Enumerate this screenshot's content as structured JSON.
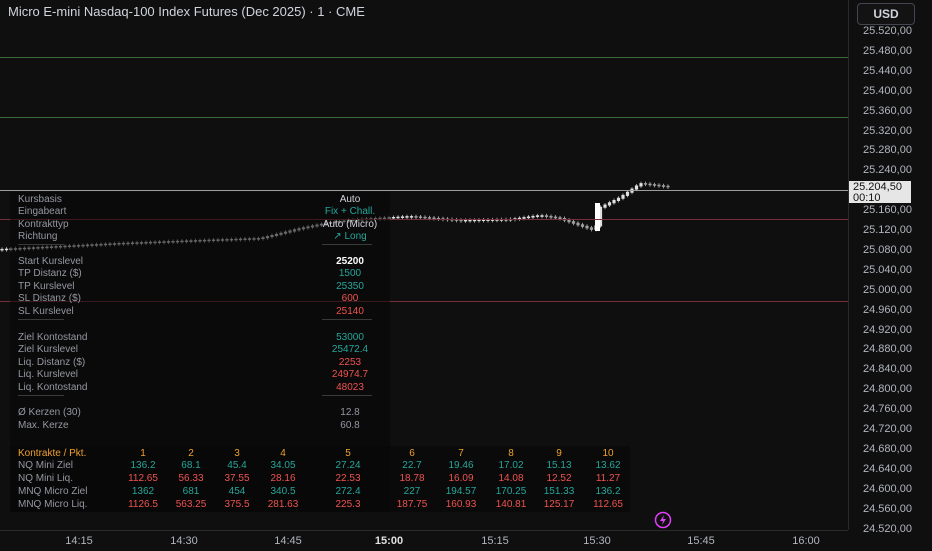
{
  "title": "Micro E-mini Nasdaq-100 Index Futures (Dec 2025) · 1 · CME",
  "currency": "USD",
  "price_ticks": [
    "25.520,00",
    "25.480,00",
    "25.440,00",
    "25.400,00",
    "25.360,00",
    "25.320,00",
    "25.280,00",
    "25.240,00",
    "25.160,00",
    "25.120,00",
    "25.080,00",
    "25.040,00",
    "25.000,00",
    "24.960,00",
    "24.920,00",
    "24.880,00",
    "24.840,00",
    "24.800,00",
    "24.760,00",
    "24.720,00",
    "24.680,00",
    "24.640,00",
    "24.600,00",
    "24.560,00",
    "24.520,00"
  ],
  "current_price": {
    "value": "25.204,50",
    "countdown": "00:10"
  },
  "time_ticks": [
    {
      "label": "14:15",
      "major": false
    },
    {
      "label": "14:30",
      "major": false
    },
    {
      "label": "14:45",
      "major": false
    },
    {
      "label": "15:00",
      "major": true
    },
    {
      "label": "15:15",
      "major": false
    },
    {
      "label": "15:30",
      "major": false
    },
    {
      "label": "15:45",
      "major": false
    },
    {
      "label": "16:00",
      "major": false
    }
  ],
  "panel": [
    {
      "label": "Kursbasis",
      "value": "Auto",
      "color": "#d1d4dc"
    },
    {
      "label": "Eingabeart",
      "value": "Fix + Chall.",
      "color": "#26a69a"
    },
    {
      "label": "Kontrakttyp",
      "value": "Auto (Micro)",
      "color": "#d1d4dc"
    },
    {
      "label": "Richtung",
      "value": "↗ Long",
      "color": "#26a69a"
    },
    {
      "label": "Start Kurslevel",
      "value": "25200",
      "color": "#ffffff"
    },
    {
      "label": "TP Distanz ($)",
      "value": "1500",
      "color": "#26a69a"
    },
    {
      "label": "TP Kurslevel",
      "value": "25350",
      "color": "#26a69a"
    },
    {
      "label": "SL Distanz ($)",
      "value": "600",
      "color": "#ef5350"
    },
    {
      "label": "SL Kurslevel",
      "value": "25140",
      "color": "#ef5350"
    },
    {
      "label": "Ziel Kontostand",
      "value": "53000",
      "color": "#26a69a"
    },
    {
      "label": "Ziel Kurslevel",
      "value": "25472.4",
      "color": "#26a69a"
    },
    {
      "label": "Liq. Distanz ($)",
      "value": "2253",
      "color": "#ef5350"
    },
    {
      "label": "Liq. Kurslevel",
      "value": "24974.7",
      "color": "#ef5350"
    },
    {
      "label": "Liq. Kontostand",
      "value": "48023",
      "color": "#ef5350"
    },
    {
      "label": "Ø Kerzen (30)",
      "value": "12.8",
      "color": "#9598a1"
    },
    {
      "label": "Max. Kerze",
      "value": "60.8",
      "color": "#9598a1"
    }
  ],
  "table": {
    "header_label": "Kontrakte / Pkt.",
    "columns": [
      "1",
      "2",
      "3",
      "4",
      "5",
      "6",
      "7",
      "8",
      "9",
      "10"
    ],
    "rows": [
      {
        "label": "NQ Mini Ziel",
        "values": [
          "136.2",
          "68.1",
          "45.4",
          "34.05",
          "27.24",
          "22.7",
          "19.46",
          "17.02",
          "15.13",
          "13.62"
        ],
        "color": "#26a69a"
      },
      {
        "label": "NQ Mini Liq.",
        "values": [
          "112.65",
          "56.33",
          "37.55",
          "28.16",
          "22.53",
          "18.78",
          "16.09",
          "14.08",
          "12.52",
          "11.27"
        ],
        "color": "#ef5350"
      },
      {
        "label": "MNQ Micro Ziel",
        "values": [
          "1362",
          "681",
          "454",
          "340.5",
          "272.4",
          "227",
          "194.57",
          "170.25",
          "151.33",
          "136.2"
        ],
        "color": "#26a69a"
      },
      {
        "label": "MNQ Micro Liq.",
        "values": [
          "1126.5",
          "563.25",
          "375.5",
          "281.63",
          "225.3",
          "187.75",
          "160.93",
          "140.81",
          "125.17",
          "112.65"
        ],
        "color": "#ef5350"
      }
    ]
  },
  "colors": {
    "tp_line": "#3d6b3d",
    "sl_line": "#7a2e3a",
    "current_line": "#bdbdbd",
    "bull": "#e0e0e0",
    "bear": "#9e9e9e",
    "accent": "#e040fb"
  },
  "icons": [
    "lightning-icon"
  ]
}
